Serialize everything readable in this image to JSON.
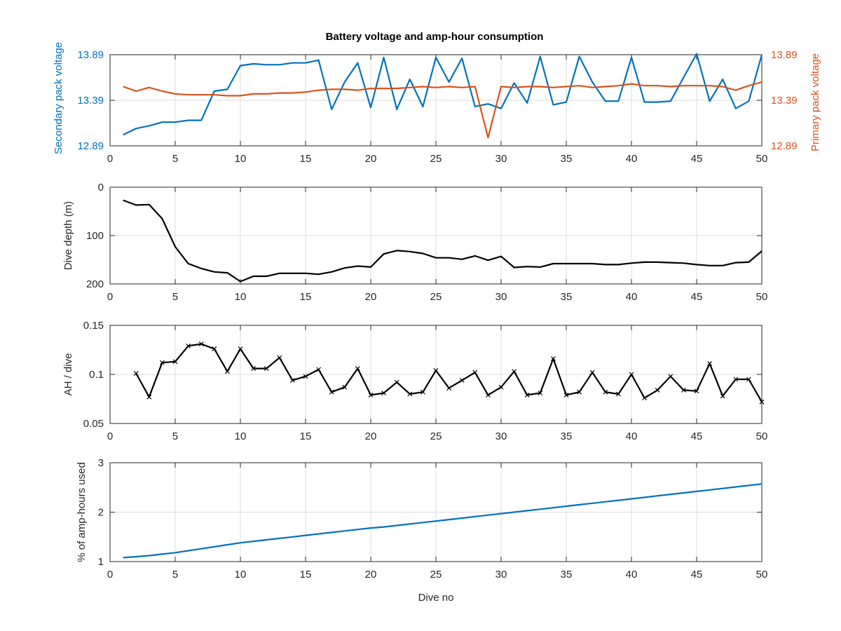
{
  "colors": {
    "secondary": "#0072BD",
    "primary": "#D95319",
    "black": "#000000",
    "axis": "#262626"
  },
  "chart_data": [
    {
      "type": "line",
      "title": "Battery voltage and amp-hour consumption",
      "xlim": [
        0,
        50
      ],
      "xticks": [
        "0",
        "5",
        "10",
        "15",
        "20",
        "25",
        "30",
        "35",
        "40",
        "45",
        "50"
      ],
      "ylabel_left": "Secondary pack voltage",
      "ylabel_right": "Primary pack voltage",
      "ylim": [
        12.89,
        13.89
      ],
      "yticks": [
        "12.89",
        "13.39",
        "13.89"
      ],
      "grid": true,
      "x": [
        1,
        2,
        3,
        4,
        5,
        6,
        7,
        8,
        9,
        10,
        11,
        12,
        13,
        14,
        15,
        16,
        17,
        18,
        19,
        20,
        21,
        22,
        23,
        24,
        25,
        26,
        27,
        28,
        29,
        30,
        31,
        32,
        33,
        34,
        35,
        36,
        37,
        38,
        39,
        40,
        41,
        42,
        43,
        44,
        45,
        46,
        47,
        48,
        49,
        50
      ],
      "series": [
        {
          "name": "Secondary pack voltage",
          "axis": "left",
          "color": "#0072BD",
          "values": [
            13.01,
            13.08,
            13.11,
            13.15,
            13.15,
            13.17,
            13.17,
            13.49,
            13.51,
            13.77,
            13.79,
            13.78,
            13.78,
            13.8,
            13.8,
            13.83,
            13.29,
            13.59,
            13.8,
            13.31,
            13.86,
            13.29,
            13.62,
            13.32,
            13.86,
            13.59,
            13.85,
            13.32,
            13.35,
            13.3,
            13.58,
            13.36,
            13.87,
            13.34,
            13.37,
            13.87,
            13.59,
            13.38,
            13.38,
            13.86,
            13.37,
            13.37,
            13.38,
            13.64,
            13.9,
            13.38,
            13.62,
            13.3,
            13.38,
            13.89
          ]
        },
        {
          "name": "Primary pack voltage",
          "axis": "right",
          "color": "#D95319",
          "values": [
            13.54,
            13.49,
            13.53,
            13.49,
            13.46,
            13.45,
            13.45,
            13.45,
            13.44,
            13.44,
            13.46,
            13.46,
            13.47,
            13.47,
            13.48,
            13.5,
            13.51,
            13.51,
            13.5,
            13.52,
            13.52,
            13.52,
            13.53,
            13.54,
            13.53,
            13.54,
            13.53,
            13.54,
            12.98,
            13.54,
            13.53,
            13.54,
            13.54,
            13.53,
            13.54,
            13.55,
            13.53,
            13.54,
            13.55,
            13.57,
            13.55,
            13.55,
            13.54,
            13.55,
            13.55,
            13.55,
            13.54,
            13.5,
            13.55,
            13.59
          ]
        }
      ]
    },
    {
      "type": "line",
      "xlim": [
        0,
        50
      ],
      "xticks": [
        "0",
        "5",
        "10",
        "15",
        "20",
        "25",
        "30",
        "35",
        "40",
        "45",
        "50"
      ],
      "ylabel": "Dive depth (m)",
      "ylim": [
        0,
        200
      ],
      "y_reversed": true,
      "yticks": [
        "0",
        "100",
        "200"
      ],
      "grid": true,
      "x": [
        1,
        2,
        3,
        4,
        5,
        6,
        7,
        8,
        9,
        10,
        11,
        12,
        13,
        14,
        15,
        16,
        17,
        18,
        19,
        20,
        21,
        22,
        23,
        24,
        25,
        26,
        27,
        28,
        29,
        30,
        31,
        32,
        33,
        34,
        35,
        36,
        37,
        38,
        39,
        40,
        41,
        42,
        43,
        44,
        45,
        46,
        47,
        48,
        49,
        50
      ],
      "series": [
        {
          "color": "#000000",
          "values": [
            27,
            37,
            36,
            65,
            123,
            158,
            168,
            175,
            177,
            195,
            184,
            184,
            178,
            178,
            178,
            180,
            175,
            167,
            163,
            165,
            138,
            131,
            133,
            137,
            146,
            146,
            149,
            142,
            151,
            143,
            166,
            164,
            165,
            158,
            158,
            158,
            158,
            160,
            160,
            157,
            155,
            155,
            156,
            157,
            160,
            162,
            162,
            156,
            155,
            132
          ]
        }
      ]
    },
    {
      "type": "line",
      "xlim": [
        0,
        50
      ],
      "xticks": [
        "0",
        "5",
        "10",
        "15",
        "20",
        "25",
        "30",
        "35",
        "40",
        "45",
        "50"
      ],
      "ylabel": "AH / dive",
      "ylim": [
        0.05,
        0.15
      ],
      "yticks": [
        "0.05",
        "0.1",
        "0.15"
      ],
      "grid": true,
      "marker": "x",
      "x": [
        2,
        3,
        4,
        5,
        6,
        7,
        8,
        9,
        10,
        11,
        12,
        13,
        14,
        15,
        16,
        17,
        18,
        19,
        20,
        21,
        22,
        23,
        24,
        25,
        26,
        27,
        28,
        29,
        30,
        31,
        32,
        33,
        34,
        35,
        36,
        37,
        38,
        39,
        40,
        41,
        42,
        43,
        44,
        45,
        46,
        47,
        48,
        49,
        50
      ],
      "series": [
        {
          "color": "#000000",
          "values": [
            0.101,
            0.077,
            0.112,
            0.113,
            0.129,
            0.131,
            0.126,
            0.103,
            0.126,
            0.106,
            0.106,
            0.117,
            0.094,
            0.098,
            0.105,
            0.082,
            0.087,
            0.106,
            0.079,
            0.081,
            0.092,
            0.08,
            0.082,
            0.104,
            0.086,
            0.094,
            0.102,
            0.079,
            0.087,
            0.103,
            0.079,
            0.081,
            0.116,
            0.079,
            0.082,
            0.102,
            0.082,
            0.08,
            0.1,
            0.076,
            0.084,
            0.098,
            0.084,
            0.083,
            0.111,
            0.078,
            0.095,
            0.095,
            0.072
          ]
        }
      ]
    },
    {
      "type": "line",
      "xlim": [
        0,
        50
      ],
      "xticks": [
        "0",
        "5",
        "10",
        "15",
        "20",
        "25",
        "30",
        "35",
        "40",
        "45",
        "50"
      ],
      "xlabel": "Dive no",
      "ylabel": "% of amp-hours used",
      "ylim": [
        1,
        3
      ],
      "yticks": [
        "1",
        "2",
        "3"
      ],
      "grid": true,
      "x": [
        1,
        2,
        3,
        4,
        5,
        6,
        7,
        8,
        9,
        10,
        11,
        12,
        13,
        14,
        15,
        16,
        17,
        18,
        19,
        20,
        21,
        22,
        23,
        24,
        25,
        26,
        27,
        28,
        29,
        30,
        31,
        32,
        33,
        34,
        35,
        36,
        37,
        38,
        39,
        40,
        41,
        42,
        43,
        44,
        45,
        46,
        47,
        48,
        49,
        50
      ],
      "series": [
        {
          "color": "#0072BD",
          "values": [
            1.08,
            1.1,
            1.12,
            1.15,
            1.18,
            1.22,
            1.26,
            1.3,
            1.34,
            1.38,
            1.41,
            1.44,
            1.47,
            1.5,
            1.53,
            1.56,
            1.59,
            1.62,
            1.65,
            1.68,
            1.7,
            1.73,
            1.76,
            1.79,
            1.82,
            1.85,
            1.88,
            1.91,
            1.94,
            1.97,
            2.0,
            2.03,
            2.06,
            2.09,
            2.12,
            2.15,
            2.18,
            2.21,
            2.24,
            2.27,
            2.3,
            2.33,
            2.36,
            2.39,
            2.42,
            2.45,
            2.48,
            2.51,
            2.54,
            2.57
          ]
        }
      ]
    }
  ]
}
